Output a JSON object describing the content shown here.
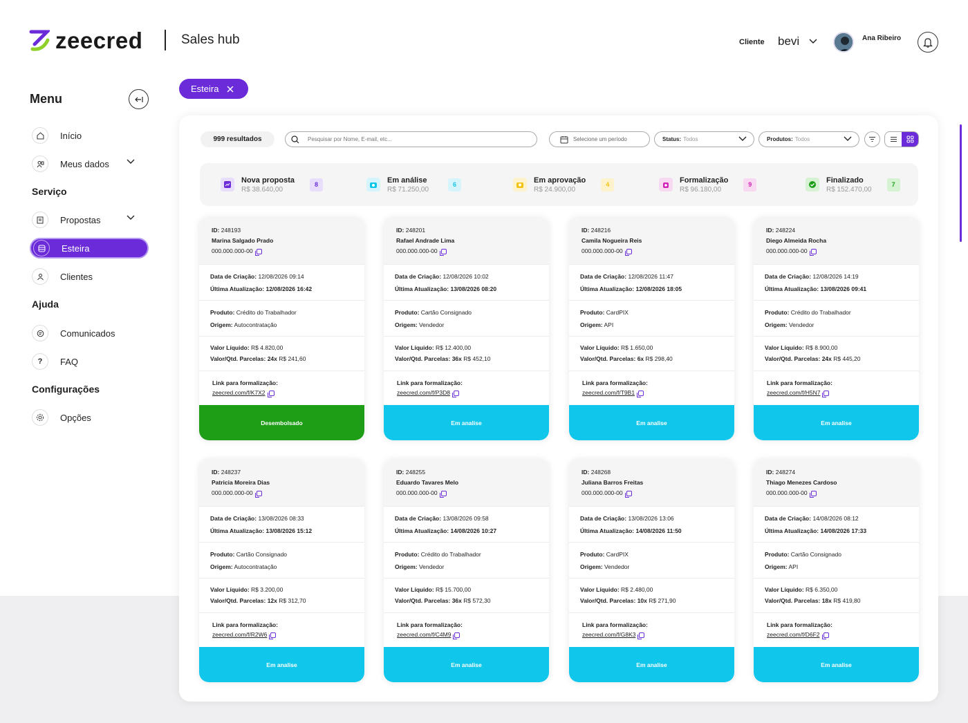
{
  "brand": {
    "name": "zeecred",
    "product": "Sales hub"
  },
  "header": {
    "client_label": "Cliente",
    "client_value": "bevi",
    "user_name": "Ana Ribeiro"
  },
  "menu": {
    "title": "Menu",
    "items": [
      {
        "label": "Início",
        "icon": "home-icon"
      },
      {
        "label": "Meus dados",
        "icon": "user-data-icon"
      }
    ],
    "sections": [
      {
        "title": "Serviço",
        "items": [
          {
            "label": "Propostas",
            "icon": "document-icon"
          },
          {
            "label": "Esteira",
            "icon": "pipeline-icon"
          },
          {
            "label": "Clientes",
            "icon": "clients-icon"
          }
        ]
      },
      {
        "title": "Ajuda",
        "items": [
          {
            "label": "Comunicados",
            "icon": "chat-icon"
          },
          {
            "label": "FAQ",
            "icon": "question-icon"
          }
        ]
      },
      {
        "title": "Configurações",
        "items": [
          {
            "label": "Opções",
            "icon": "gear-icon"
          }
        ]
      }
    ]
  },
  "chip": {
    "label": "Esteira"
  },
  "toolbar": {
    "results": "999 resultados",
    "search_placeholder": "Pesquisar por Nome, E-mail, etc...",
    "period_placeholder": "Selecione um período",
    "status_label": "Status:",
    "status_value": "Todos",
    "products_label": "Produtos:",
    "products_value": "Todos"
  },
  "stages": [
    {
      "title": "Nova proposta",
      "value": "R$ 38.640,00",
      "count": "8",
      "color": "#6b2bd9",
      "bg": "#e8defb"
    },
    {
      "title": "Em análise",
      "value": "R$ 71.250,00",
      "count": "6",
      "color": "#10c6ea",
      "bg": "#d6f4fb"
    },
    {
      "title": "Em aprovação",
      "value": "R$ 24.900,00",
      "count": "4",
      "color": "#f2c413",
      "bg": "#fcf2cc"
    },
    {
      "title": "Formalização",
      "value": "R$ 96.180,00",
      "count": "9",
      "color": "#d424b8",
      "bg": "#f7d9f2"
    },
    {
      "title": "Finalizado",
      "value": "R$ 152.470,00",
      "count": "7",
      "color": "#1e9e17",
      "bg": "#d5f2d3"
    }
  ],
  "labels": {
    "id": "ID:",
    "created": "Data de Criação:",
    "updated": "Última Atualização:",
    "product": "Produto:",
    "origin": "Origem:",
    "net_value": "Valor Líquido:",
    "installments": "Valor/Qtd. Parcelas:",
    "link": "Link para formalização:"
  },
  "proposals": [
    {
      "id": "248193",
      "name": "Marina Salgado Prado",
      "doc": "000.000.000-00",
      "created": "12/08/2026 09:14",
      "updated": "12/08/2026 16:42",
      "product": "Crédito do Trabalhador",
      "origin": "Autocontratação",
      "net": "R$ 4.820,00",
      "inst_qty": "24x",
      "inst_val": "R$ 241,60",
      "link": "zeecred.com/f/K7X2",
      "status": "Desembolsado",
      "status_color": "#1e9e17"
    },
    {
      "id": "248201",
      "name": "Rafael Andrade Lima",
      "doc": "000.000.000-00",
      "created": "12/08/2026 10:02",
      "updated": "13/08/2026 08:20",
      "product": "Cartão Consignado",
      "origin": "Vendedor",
      "net": "R$ 12.400,00",
      "inst_qty": "36x",
      "inst_val": "R$ 452,10",
      "link": "zeecred.com/f/P3D8",
      "status": "Em analise",
      "status_color": "#10c6ea"
    },
    {
      "id": "248216",
      "name": "Camila Nogueira Reis",
      "doc": "000.000.000-00",
      "created": "12/08/2026 11:47",
      "updated": "12/08/2026 18:05",
      "product": "CardPIX",
      "origin": "API",
      "net": "R$ 1.650,00",
      "inst_qty": "6x",
      "inst_val": "R$ 298,40",
      "link": "zeecred.com/f/T9B1",
      "status": "Em analise",
      "status_color": "#10c6ea"
    },
    {
      "id": "248224",
      "name": "Diego Almeida Rocha",
      "doc": "000.000.000-00",
      "created": "12/08/2026 14:19",
      "updated": "13/08/2026 09:41",
      "product": "Crédito do Trabalhador",
      "origin": "Vendedor",
      "net": "R$ 8.900,00",
      "inst_qty": "24x",
      "inst_val": "R$ 445,20",
      "link": "zeecred.com/f/H5N7",
      "status": "Em analise",
      "status_color": "#10c6ea"
    },
    {
      "id": "248237",
      "name": "Patricia Moreira Dias",
      "doc": "000.000.000-00",
      "created": "13/08/2026 08:33",
      "updated": "13/08/2026 15:12",
      "product": "Cartão Consignado",
      "origin": "Autocontratação",
      "net": "R$ 3.200,00",
      "inst_qty": "12x",
      "inst_val": "R$ 312,70",
      "link": "zeecred.com/f/R2W6",
      "status": "Em analise",
      "status_color": "#10c6ea"
    },
    {
      "id": "248255",
      "name": "Eduardo Tavares Melo",
      "doc": "000.000.000-00",
      "created": "13/08/2026 09:58",
      "updated": "14/08/2026 10:27",
      "product": "Crédito do Trabalhador",
      "origin": "Vendedor",
      "net": "R$ 15.700,00",
      "inst_qty": "36x",
      "inst_val": "R$ 572,30",
      "link": "zeecred.com/f/C4M9",
      "status": "Em analise",
      "status_color": "#10c6ea"
    },
    {
      "id": "248268",
      "name": "Juliana Barros Freitas",
      "doc": "000.000.000-00",
      "created": "13/08/2026 13:06",
      "updated": "14/08/2026 11:50",
      "product": "CardPIX",
      "origin": "Vendedor",
      "net": "R$ 2.480,00",
      "inst_qty": "10x",
      "inst_val": "R$ 271,90",
      "link": "zeecred.com/f/G8K3",
      "status": "Em analise",
      "status_color": "#10c6ea"
    },
    {
      "id": "248274",
      "name": "Thiago Menezes Cardoso",
      "doc": "000.000.000-00",
      "created": "14/08/2026 08:12",
      "updated": "14/08/2026 17:33",
      "product": "Cartão Consignado",
      "origin": "API",
      "net": "R$ 6.350,00",
      "inst_qty": "18x",
      "inst_val": "R$ 419,80",
      "link": "zeecred.com/f/D6F2",
      "status": "Em analise",
      "status_color": "#10c6ea"
    }
  ]
}
